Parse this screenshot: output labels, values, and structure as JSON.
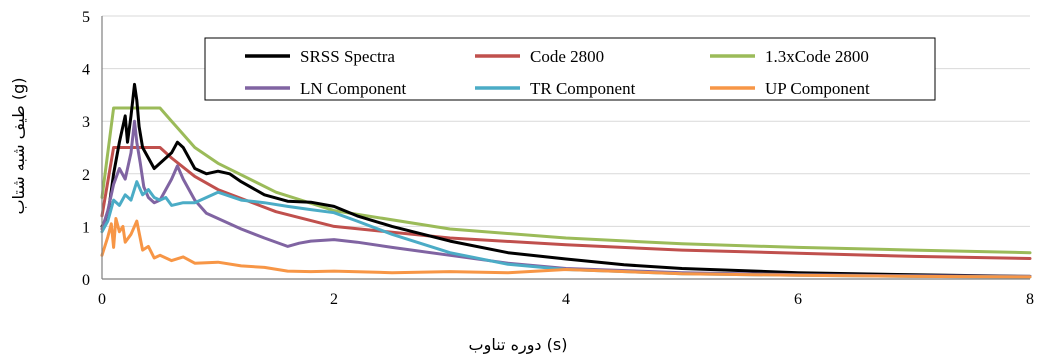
{
  "chart_data": {
    "type": "line",
    "xlabel": "دوره تناوب (s)",
    "ylabel": "طیف شبه شتاب (g)",
    "xlim": [
      0,
      8
    ],
    "ylim": [
      0,
      5
    ],
    "xticks": [
      "0",
      "2",
      "4",
      "6",
      "8"
    ],
    "yticks": [
      "0",
      "1",
      "2",
      "3",
      "4",
      "5"
    ],
    "grid": "horizontal",
    "legend_position": "top-center",
    "series": [
      {
        "name": "SRSS Spectra",
        "color": "#000000",
        "x": [
          0,
          0.05,
          0.1,
          0.15,
          0.2,
          0.22,
          0.25,
          0.28,
          0.3,
          0.32,
          0.35,
          0.4,
          0.45,
          0.5,
          0.55,
          0.6,
          0.65,
          0.7,
          0.8,
          0.9,
          1.0,
          1.1,
          1.2,
          1.4,
          1.6,
          1.8,
          2.0,
          2.2,
          2.5,
          3.0,
          3.5,
          4.0,
          4.5,
          5.0,
          6.0,
          7.0,
          8.0
        ],
        "y": [
          1.0,
          1.2,
          2.0,
          2.6,
          3.1,
          2.6,
          3.1,
          3.7,
          3.4,
          2.9,
          2.5,
          2.3,
          2.1,
          2.2,
          2.3,
          2.4,
          2.6,
          2.5,
          2.1,
          2.0,
          2.05,
          2.0,
          1.85,
          1.6,
          1.48,
          1.46,
          1.38,
          1.2,
          1.0,
          0.72,
          0.5,
          0.38,
          0.27,
          0.2,
          0.12,
          0.08,
          0.05
        ]
      },
      {
        "name": "Code 2800",
        "color": "#c0504d",
        "x": [
          0,
          0.1,
          0.5,
          0.6,
          0.8,
          1.0,
          1.5,
          2.0,
          3.0,
          4.0,
          5.0,
          6.0,
          7.0,
          8.0
        ],
        "y": [
          1.2,
          2.5,
          2.5,
          2.3,
          1.95,
          1.7,
          1.28,
          1.0,
          0.78,
          0.65,
          0.55,
          0.49,
          0.43,
          0.39
        ]
      },
      {
        "name": "1.3xCode 2800",
        "color": "#9bbb59",
        "x": [
          0,
          0.1,
          0.5,
          0.6,
          0.8,
          1.0,
          1.5,
          2.0,
          3.0,
          4.0,
          5.0,
          6.0,
          7.0,
          8.0
        ],
        "y": [
          1.55,
          3.25,
          3.25,
          3.0,
          2.5,
          2.2,
          1.65,
          1.3,
          0.95,
          0.78,
          0.67,
          0.6,
          0.55,
          0.5
        ]
      },
      {
        "name": "LN Component",
        "color": "#8064a2",
        "x": [
          0,
          0.05,
          0.1,
          0.15,
          0.2,
          0.25,
          0.28,
          0.3,
          0.33,
          0.36,
          0.4,
          0.45,
          0.5,
          0.55,
          0.6,
          0.65,
          0.7,
          0.8,
          0.9,
          1.0,
          1.2,
          1.4,
          1.6,
          1.7,
          1.8,
          2.0,
          2.2,
          2.5,
          3.0,
          3.5,
          4.0,
          5.0,
          6.0,
          7.0,
          8.0
        ],
        "y": [
          0.95,
          1.3,
          1.8,
          2.1,
          1.9,
          2.4,
          3.0,
          2.6,
          2.2,
          1.75,
          1.55,
          1.45,
          1.5,
          1.7,
          1.9,
          2.15,
          1.9,
          1.5,
          1.25,
          1.15,
          0.95,
          0.78,
          0.62,
          0.68,
          0.72,
          0.75,
          0.7,
          0.6,
          0.45,
          0.3,
          0.2,
          0.12,
          0.08,
          0.06,
          0.05
        ]
      },
      {
        "name": "TR Component",
        "color": "#4bacc6",
        "x": [
          0,
          0.05,
          0.1,
          0.15,
          0.2,
          0.25,
          0.3,
          0.35,
          0.4,
          0.45,
          0.5,
          0.55,
          0.6,
          0.7,
          0.8,
          0.9,
          1.0,
          1.2,
          1.4,
          1.6,
          1.8,
          2.0,
          2.2,
          2.5,
          3.0,
          3.5,
          4.0,
          5.0,
          6.0,
          7.0,
          8.0
        ],
        "y": [
          0.9,
          1.1,
          1.5,
          1.4,
          1.6,
          1.5,
          1.85,
          1.6,
          1.7,
          1.55,
          1.5,
          1.55,
          1.4,
          1.45,
          1.45,
          1.55,
          1.65,
          1.5,
          1.45,
          1.38,
          1.32,
          1.26,
          1.1,
          0.85,
          0.5,
          0.28,
          0.18,
          0.1,
          0.07,
          0.05,
          0.04
        ]
      },
      {
        "name": "UP Component",
        "color": "#f79646",
        "x": [
          0,
          0.05,
          0.08,
          0.1,
          0.12,
          0.15,
          0.18,
          0.2,
          0.25,
          0.3,
          0.35,
          0.4,
          0.45,
          0.5,
          0.6,
          0.7,
          0.8,
          1.0,
          1.2,
          1.4,
          1.6,
          1.8,
          2.0,
          2.5,
          3.0,
          3.5,
          4.0,
          5.0,
          6.0,
          7.0,
          8.0
        ],
        "y": [
          0.45,
          0.8,
          1.05,
          0.6,
          1.15,
          0.9,
          1.0,
          0.7,
          0.85,
          1.1,
          0.55,
          0.62,
          0.4,
          0.45,
          0.35,
          0.42,
          0.3,
          0.32,
          0.25,
          0.22,
          0.15,
          0.14,
          0.15,
          0.12,
          0.14,
          0.12,
          0.18,
          0.1,
          0.07,
          0.05,
          0.04
        ]
      }
    ]
  }
}
